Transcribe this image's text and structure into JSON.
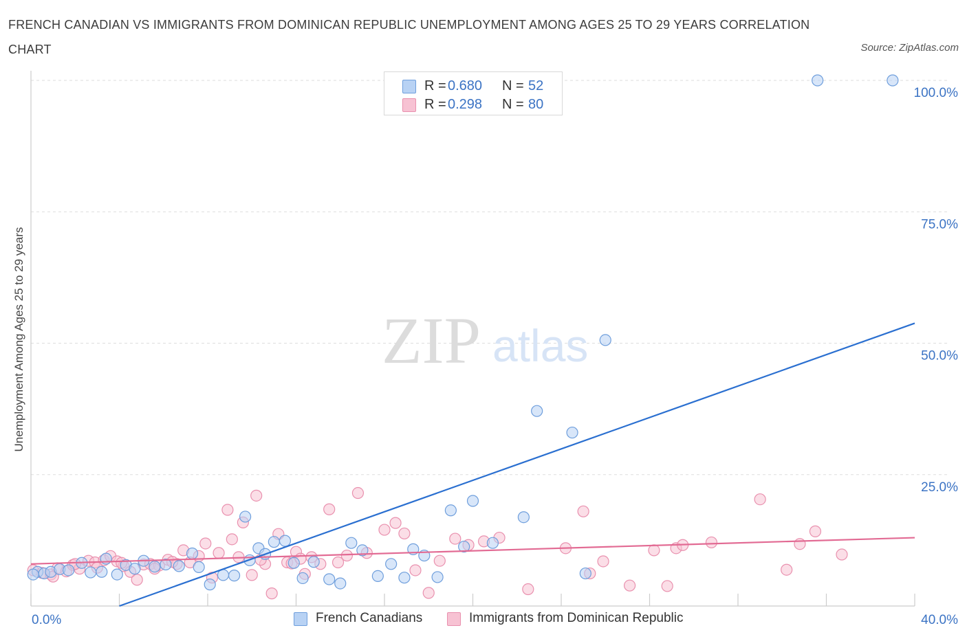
{
  "title": "FRENCH CANADIAN VS IMMIGRANTS FROM DOMINICAN REPUBLIC UNEMPLOYMENT AMONG AGES 25 TO 29 YEARS CORRELATION CHART",
  "source": "Source: ZipAtlas.com",
  "watermark": {
    "zip": "ZIP",
    "atlas": "atlas"
  },
  "colors": {
    "blue_fill": "#b8d2f4",
    "blue_stroke": "#6e9edc",
    "blue_line": "#2a6fd0",
    "pink_fill": "#f7c2d3",
    "pink_stroke": "#e990ae",
    "pink_line": "#e26a93",
    "axis_label": "#3b73c4"
  },
  "legend": {
    "items": [
      {
        "r_label": "R =",
        "r_value": "0.680",
        "n_label": "N =",
        "n_value": "52"
      },
      {
        "r_label": "R =",
        "r_value": "0.298",
        "n_label": "N =",
        "n_value": "80"
      }
    ]
  },
  "bottom_legend": [
    "French Canadians",
    "Immigrants from Dominican Republic"
  ],
  "chart_data": {
    "type": "scatter",
    "title": "FRENCH CANADIAN VS IMMIGRANTS FROM DOMINICAN REPUBLIC UNEMPLOYMENT AMONG AGES 25 TO 29 YEARS CORRELATION CHART",
    "xlabel": "",
    "ylabel": "Unemployment Among Ages 25 to 29 years",
    "xlim": [
      0,
      40
    ],
    "ylim": [
      0,
      100
    ],
    "x_tick_labels": [
      "0.0%",
      "40.0%"
    ],
    "y_tick_labels": [
      "100.0%",
      "75.0%",
      "50.0%",
      "25.0%"
    ],
    "y_ticks": [
      100,
      75,
      50,
      25
    ],
    "grid": true,
    "legend_position": "top-center",
    "series": [
      {
        "name": "French Canadians",
        "r": 0.68,
        "n": 52,
        "trend": {
          "x": [
            4.0,
            40.0
          ],
          "y": [
            0.0,
            53.8
          ]
        },
        "points": [
          [
            0.3,
            6.5
          ],
          [
            0.6,
            6.2
          ],
          [
            0.9,
            6.5
          ],
          [
            1.3,
            7.0
          ],
          [
            1.7,
            6.8
          ],
          [
            2.3,
            8.2
          ],
          [
            2.7,
            6.4
          ],
          [
            3.2,
            6.5
          ],
          [
            3.4,
            9.0
          ],
          [
            3.9,
            6.0
          ],
          [
            4.3,
            7.8
          ],
          [
            4.7,
            7.1
          ],
          [
            5.1,
            8.6
          ],
          [
            5.6,
            7.5
          ],
          [
            6.1,
            7.9
          ],
          [
            6.7,
            7.6
          ],
          [
            7.3,
            10.0
          ],
          [
            7.6,
            7.4
          ],
          [
            8.1,
            4.1
          ],
          [
            8.7,
            5.9
          ],
          [
            9.2,
            5.8
          ],
          [
            9.7,
            17.0
          ],
          [
            9.9,
            8.7
          ],
          [
            10.3,
            11.0
          ],
          [
            10.6,
            9.9
          ],
          [
            11.0,
            12.2
          ],
          [
            11.5,
            12.4
          ],
          [
            11.9,
            8.2
          ],
          [
            12.3,
            5.3
          ],
          [
            12.8,
            8.4
          ],
          [
            13.5,
            5.1
          ],
          [
            14.0,
            4.3
          ],
          [
            14.5,
            12.0
          ],
          [
            15.0,
            10.6
          ],
          [
            15.7,
            5.7
          ],
          [
            16.3,
            8.0
          ],
          [
            16.9,
            5.4
          ],
          [
            17.3,
            10.8
          ],
          [
            17.8,
            9.6
          ],
          [
            18.4,
            5.5
          ],
          [
            19.0,
            18.2
          ],
          [
            19.6,
            11.3
          ],
          [
            20.0,
            20.0
          ],
          [
            20.9,
            12.0
          ],
          [
            22.3,
            16.9
          ],
          [
            22.9,
            37.1
          ],
          [
            24.5,
            33.0
          ],
          [
            25.1,
            6.2
          ],
          [
            26.0,
            50.6
          ],
          [
            35.6,
            100.0
          ],
          [
            39.0,
            100.0
          ],
          [
            0.1,
            6.0
          ]
        ]
      },
      {
        "name": "Immigrants from Dominican Republic",
        "r": 0.298,
        "n": 80,
        "trend": {
          "x": [
            0.0,
            40.0
          ],
          "y": [
            8.0,
            13.0
          ]
        },
        "points": [
          [
            0.1,
            6.8
          ],
          [
            0.5,
            6.3
          ],
          [
            0.9,
            6.0
          ],
          [
            1.2,
            7.2
          ],
          [
            1.6,
            6.6
          ],
          [
            1.9,
            7.8
          ],
          [
            2.2,
            7.1
          ],
          [
            2.6,
            8.6
          ],
          [
            2.9,
            8.3
          ],
          [
            3.3,
            8.7
          ],
          [
            3.6,
            9.5
          ],
          [
            3.9,
            8.5
          ],
          [
            4.2,
            7.6
          ],
          [
            4.5,
            6.5
          ],
          [
            4.8,
            5.0
          ],
          [
            5.1,
            7.9
          ],
          [
            5.4,
            8.0
          ],
          [
            5.8,
            7.7
          ],
          [
            6.2,
            8.8
          ],
          [
            6.6,
            8.0
          ],
          [
            6.9,
            10.6
          ],
          [
            7.2,
            8.3
          ],
          [
            7.6,
            9.5
          ],
          [
            7.9,
            11.9
          ],
          [
            8.2,
            5.4
          ],
          [
            8.5,
            10.1
          ],
          [
            8.9,
            18.3
          ],
          [
            9.1,
            12.7
          ],
          [
            9.4,
            9.3
          ],
          [
            9.6,
            15.9
          ],
          [
            10.0,
            5.9
          ],
          [
            10.2,
            21.0
          ],
          [
            10.6,
            8.0
          ],
          [
            10.9,
            2.4
          ],
          [
            11.2,
            13.7
          ],
          [
            11.6,
            8.3
          ],
          [
            12.0,
            10.3
          ],
          [
            12.4,
            6.1
          ],
          [
            12.7,
            9.3
          ],
          [
            13.1,
            8.0
          ],
          [
            13.5,
            18.4
          ],
          [
            13.9,
            8.3
          ],
          [
            14.3,
            9.6
          ],
          [
            14.8,
            21.5
          ],
          [
            15.2,
            10.1
          ],
          [
            16.0,
            14.5
          ],
          [
            16.5,
            15.8
          ],
          [
            16.9,
            13.8
          ],
          [
            17.4,
            6.8
          ],
          [
            18.0,
            2.5
          ],
          [
            18.5,
            8.6
          ],
          [
            19.2,
            12.8
          ],
          [
            19.8,
            11.6
          ],
          [
            20.5,
            12.3
          ],
          [
            21.2,
            13.0
          ],
          [
            22.5,
            3.2
          ],
          [
            24.2,
            11.0
          ],
          [
            25.0,
            18.0
          ],
          [
            25.3,
            6.2
          ],
          [
            25.9,
            8.5
          ],
          [
            27.1,
            3.9
          ],
          [
            28.2,
            10.6
          ],
          [
            28.8,
            3.8
          ],
          [
            29.2,
            11.0
          ],
          [
            29.5,
            11.6
          ],
          [
            30.8,
            12.1
          ],
          [
            33.0,
            20.3
          ],
          [
            34.2,
            6.9
          ],
          [
            34.8,
            11.8
          ],
          [
            35.5,
            14.2
          ],
          [
            36.7,
            9.8
          ],
          [
            1.0,
            5.6
          ],
          [
            2.0,
            8.0
          ],
          [
            3.0,
            7.3
          ],
          [
            4.1,
            8.2
          ],
          [
            5.6,
            7.1
          ],
          [
            6.4,
            8.4
          ],
          [
            10.4,
            8.8
          ],
          [
            11.8,
            8.1
          ],
          [
            12.2,
            9.0
          ]
        ]
      }
    ]
  }
}
